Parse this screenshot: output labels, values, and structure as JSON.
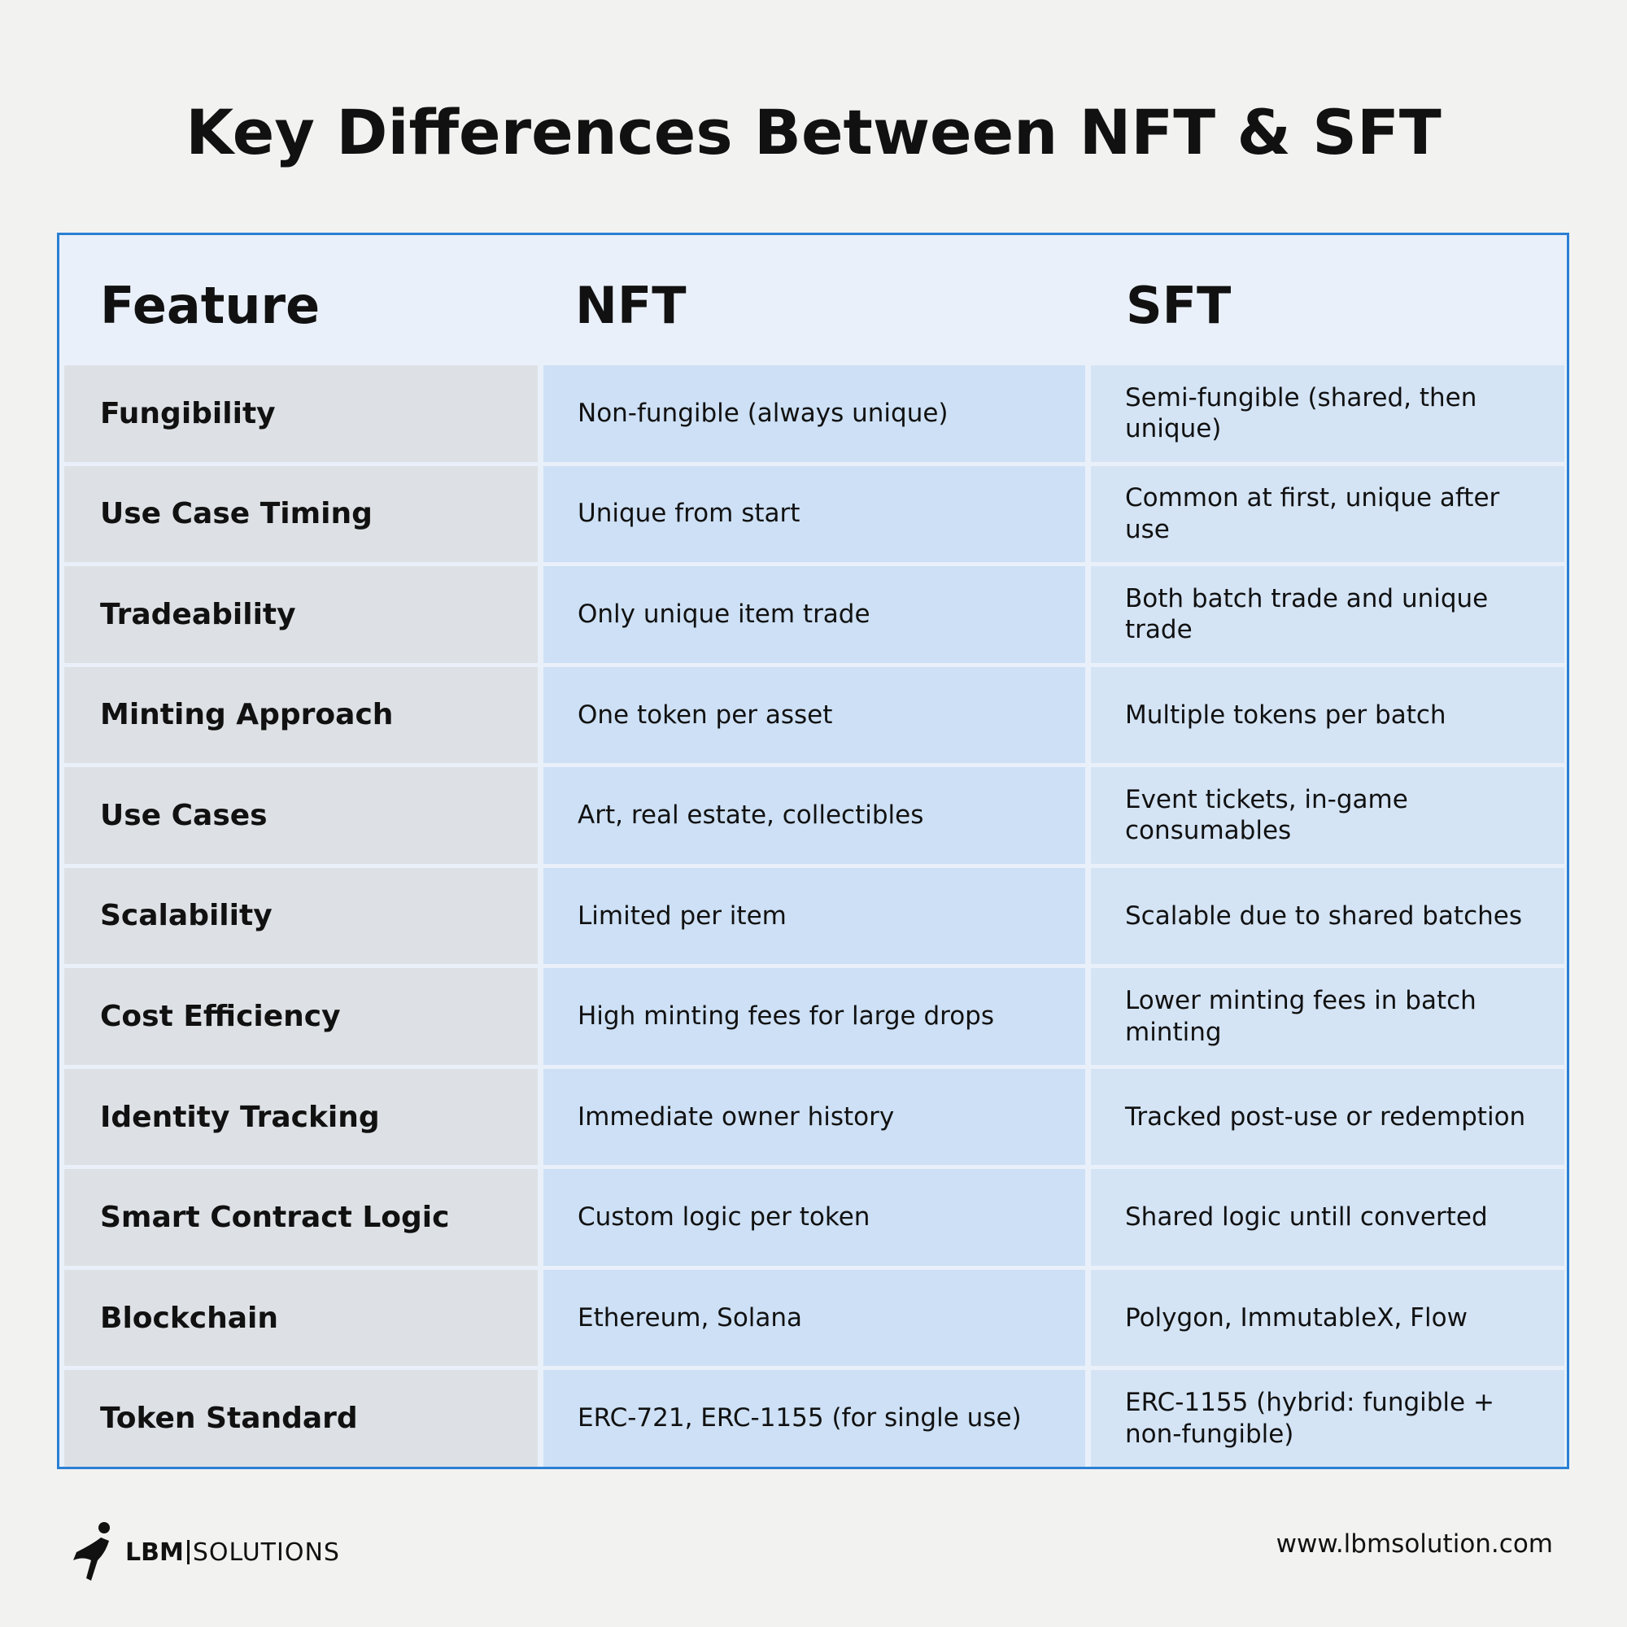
{
  "title": "Key Differences Between NFT & SFT",
  "table": {
    "header": [
      "Feature",
      "NFT",
      "SFT"
    ],
    "rows": [
      [
        "Fungibility",
        "Non-fungible (always unique)",
        "Semi-fungible (shared, then unique)"
      ],
      [
        "Use Case Timing",
        "Unique from start",
        "Common at first, unique after use"
      ],
      [
        "Tradeability",
        "Only unique item trade",
        "Both batch trade and unique trade"
      ],
      [
        "Minting Approach",
        "One token per asset",
        "Multiple tokens per batch"
      ],
      [
        "Use Cases",
        "Art, real estate, collectibles",
        "Event tickets, in-game consumables"
      ],
      [
        "Scalability",
        "Limited per item",
        "Scalable due to shared batches"
      ],
      [
        "Cost Efficiency",
        "High minting fees for large drops",
        "Lower minting fees in batch minting"
      ],
      [
        "Identity Tracking",
        "Immediate owner history",
        "Tracked post-use or redemption"
      ],
      [
        "Smart Contract Logic",
        "Custom logic per token",
        "Shared logic untill converted"
      ],
      [
        "Blockchain",
        "Ethereum, Solana",
        "Polygon, ImmutableX, Flow"
      ],
      [
        "Token Standard",
        "ERC-721, ERC-1155 (for single use)",
        "ERC-1155 (hybrid: fungible + non-fungible)"
      ]
    ]
  },
  "footer": {
    "brand": [
      "LBM",
      "SOLUTIONS"
    ],
    "url": "www.lbmsolution.com"
  }
}
